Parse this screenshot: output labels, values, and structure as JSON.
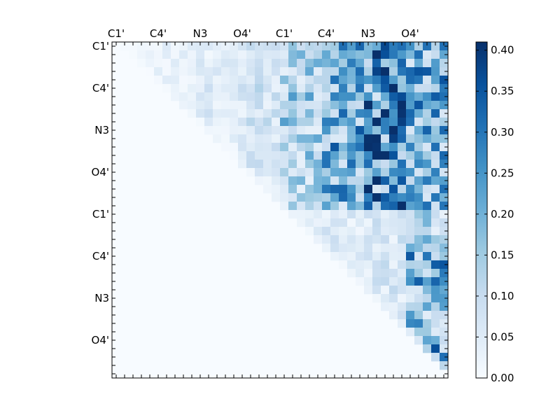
{
  "chart_data": {
    "type": "heatmap",
    "title": "",
    "xlabel": "",
    "ylabel": "",
    "x_tick_labels": [
      "C1'",
      "C4'",
      "N3",
      "O4'",
      "C1'",
      "C4'",
      "N3",
      "O4'"
    ],
    "y_tick_labels": [
      "C1'",
      "C4'",
      "N3",
      "O4'",
      "C1'",
      "C4'",
      "N3",
      "O4'"
    ],
    "tick_label_index_start": 0,
    "tick_label_index_step": 5,
    "grid_size": 40,
    "upper_triangular": true,
    "colormap": "Blues",
    "colormap_stops": [
      "#f7fbff",
      "#deebf7",
      "#c6dbef",
      "#9ecae1",
      "#6baed6",
      "#4292c6",
      "#2171b5",
      "#08519c",
      "#08306b"
    ],
    "colorbar": {
      "vmin": 0.0,
      "vmax": 0.41,
      "tick_labels": [
        "0.00",
        "0.05",
        "0.10",
        "0.15",
        "0.20",
        "0.25",
        "0.30",
        "0.35",
        "0.40"
      ]
    },
    "block_matrix_approx": {
      "note_rows": "rows/cols grouped into blocks of 5 residues (8 blocks); values are typical magnitudes of the upper triangle",
      "values": [
        [
          0.02,
          0.03,
          0.04,
          0.06,
          0.12,
          0.18,
          0.25,
          0.2
        ],
        [
          0.0,
          0.03,
          0.05,
          0.07,
          0.14,
          0.2,
          0.26,
          0.19
        ],
        [
          0.0,
          0.0,
          0.03,
          0.06,
          0.12,
          0.19,
          0.28,
          0.18
        ],
        [
          0.0,
          0.0,
          0.0,
          0.04,
          0.11,
          0.18,
          0.24,
          0.17
        ],
        [
          0.0,
          0.0,
          0.0,
          0.0,
          0.04,
          0.05,
          0.06,
          0.12
        ],
        [
          0.0,
          0.0,
          0.0,
          0.0,
          0.0,
          0.04,
          0.06,
          0.2
        ],
        [
          0.0,
          0.0,
          0.0,
          0.0,
          0.0,
          0.0,
          0.05,
          0.16
        ],
        [
          0.0,
          0.0,
          0.0,
          0.0,
          0.0,
          0.0,
          0.0,
          0.2
        ]
      ]
    },
    "grid": false,
    "legend": "colorbar-right"
  }
}
